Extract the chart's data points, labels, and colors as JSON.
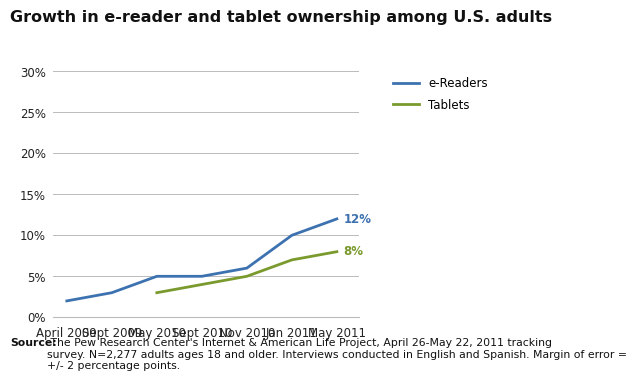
{
  "title": "Growth in e-reader and tablet ownership among U.S. adults",
  "x_labels": [
    "April 2009",
    "Sept 2009",
    "May 2010",
    "Sept 2010",
    "Nov 2010",
    "Jan 2011",
    "May 2011"
  ],
  "x_positions": [
    0,
    1,
    2,
    3,
    4,
    5,
    6
  ],
  "ereader_values": [
    2,
    3,
    5,
    5,
    6,
    10,
    12
  ],
  "tablet_values": [
    null,
    null,
    3,
    null,
    5,
    7,
    8
  ],
  "ereader_color": "#3d72b0",
  "tablet_color": "#7a9a2e",
  "ereader_label": "e-Readers",
  "tablet_label": "Tablets",
  "ereader_end_label": "12%",
  "tablet_end_label": "8%",
  "ylim": [
    0,
    30
  ],
  "yticks": [
    0,
    5,
    10,
    15,
    20,
    25,
    30
  ],
  "ytick_labels": [
    "0%",
    "5%",
    "10%",
    "15%",
    "20%",
    "25%",
    "30%"
  ],
  "source_bold": "Source:",
  "source_rest": " The Pew Research Center's Internet & American Life Project, April 26-May 22, 2011 tracking\nsurvey. N=2,277 adults ages 18 and older. Interviews conducted in English and Spanish. Margin of error =\n+/- 2 percentage points.",
  "background_color": "#ffffff",
  "grid_color": "#bbbbbb",
  "title_fontsize": 11.5,
  "axis_fontsize": 8.5,
  "source_fontsize": 7.8
}
